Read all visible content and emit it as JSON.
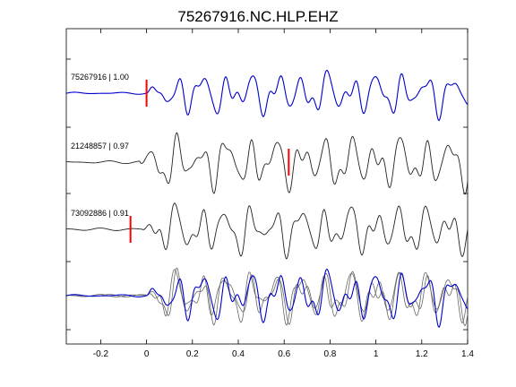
{
  "chart_data": {
    "type": "line",
    "title": "75267916.NC.HLP.EHZ",
    "xlabel": "",
    "ylabel": "",
    "xlim": [
      -0.35,
      1.4
    ],
    "x_ticks": [
      -0.2,
      0,
      0.2,
      0.4,
      0.6,
      0.8,
      1,
      1.2,
      1.4
    ],
    "x_tick_labels": [
      "-0.2",
      "0",
      "0.2",
      "0.4",
      "0.6",
      "0.8",
      "1",
      "1.2",
      "1.4"
    ],
    "grid": false,
    "legend": "none",
    "traces": [
      {
        "label": "75267916 | 1.00",
        "event_id": "75267916",
        "correlation": "1.00",
        "color": "#0000cc",
        "pick_time": 0.0,
        "pick_color": "#ff0000"
      },
      {
        "label": "21248857 | 0.97",
        "event_id": "21248857",
        "correlation": "0.97",
        "color": "#222222",
        "pick_time": 0.62,
        "pick_color": "#ff0000"
      },
      {
        "label": "73092886 | 0.91",
        "event_id": "73092886",
        "correlation": "0.91",
        "color": "#222222",
        "pick_time": -0.07,
        "pick_color": "#ff0000"
      },
      {
        "label": "",
        "event_id": "",
        "correlation": "",
        "color": "#0000cc",
        "overlay": true,
        "overlay_colors": [
          "#666666",
          "#666666",
          "#0000cc"
        ]
      }
    ]
  }
}
